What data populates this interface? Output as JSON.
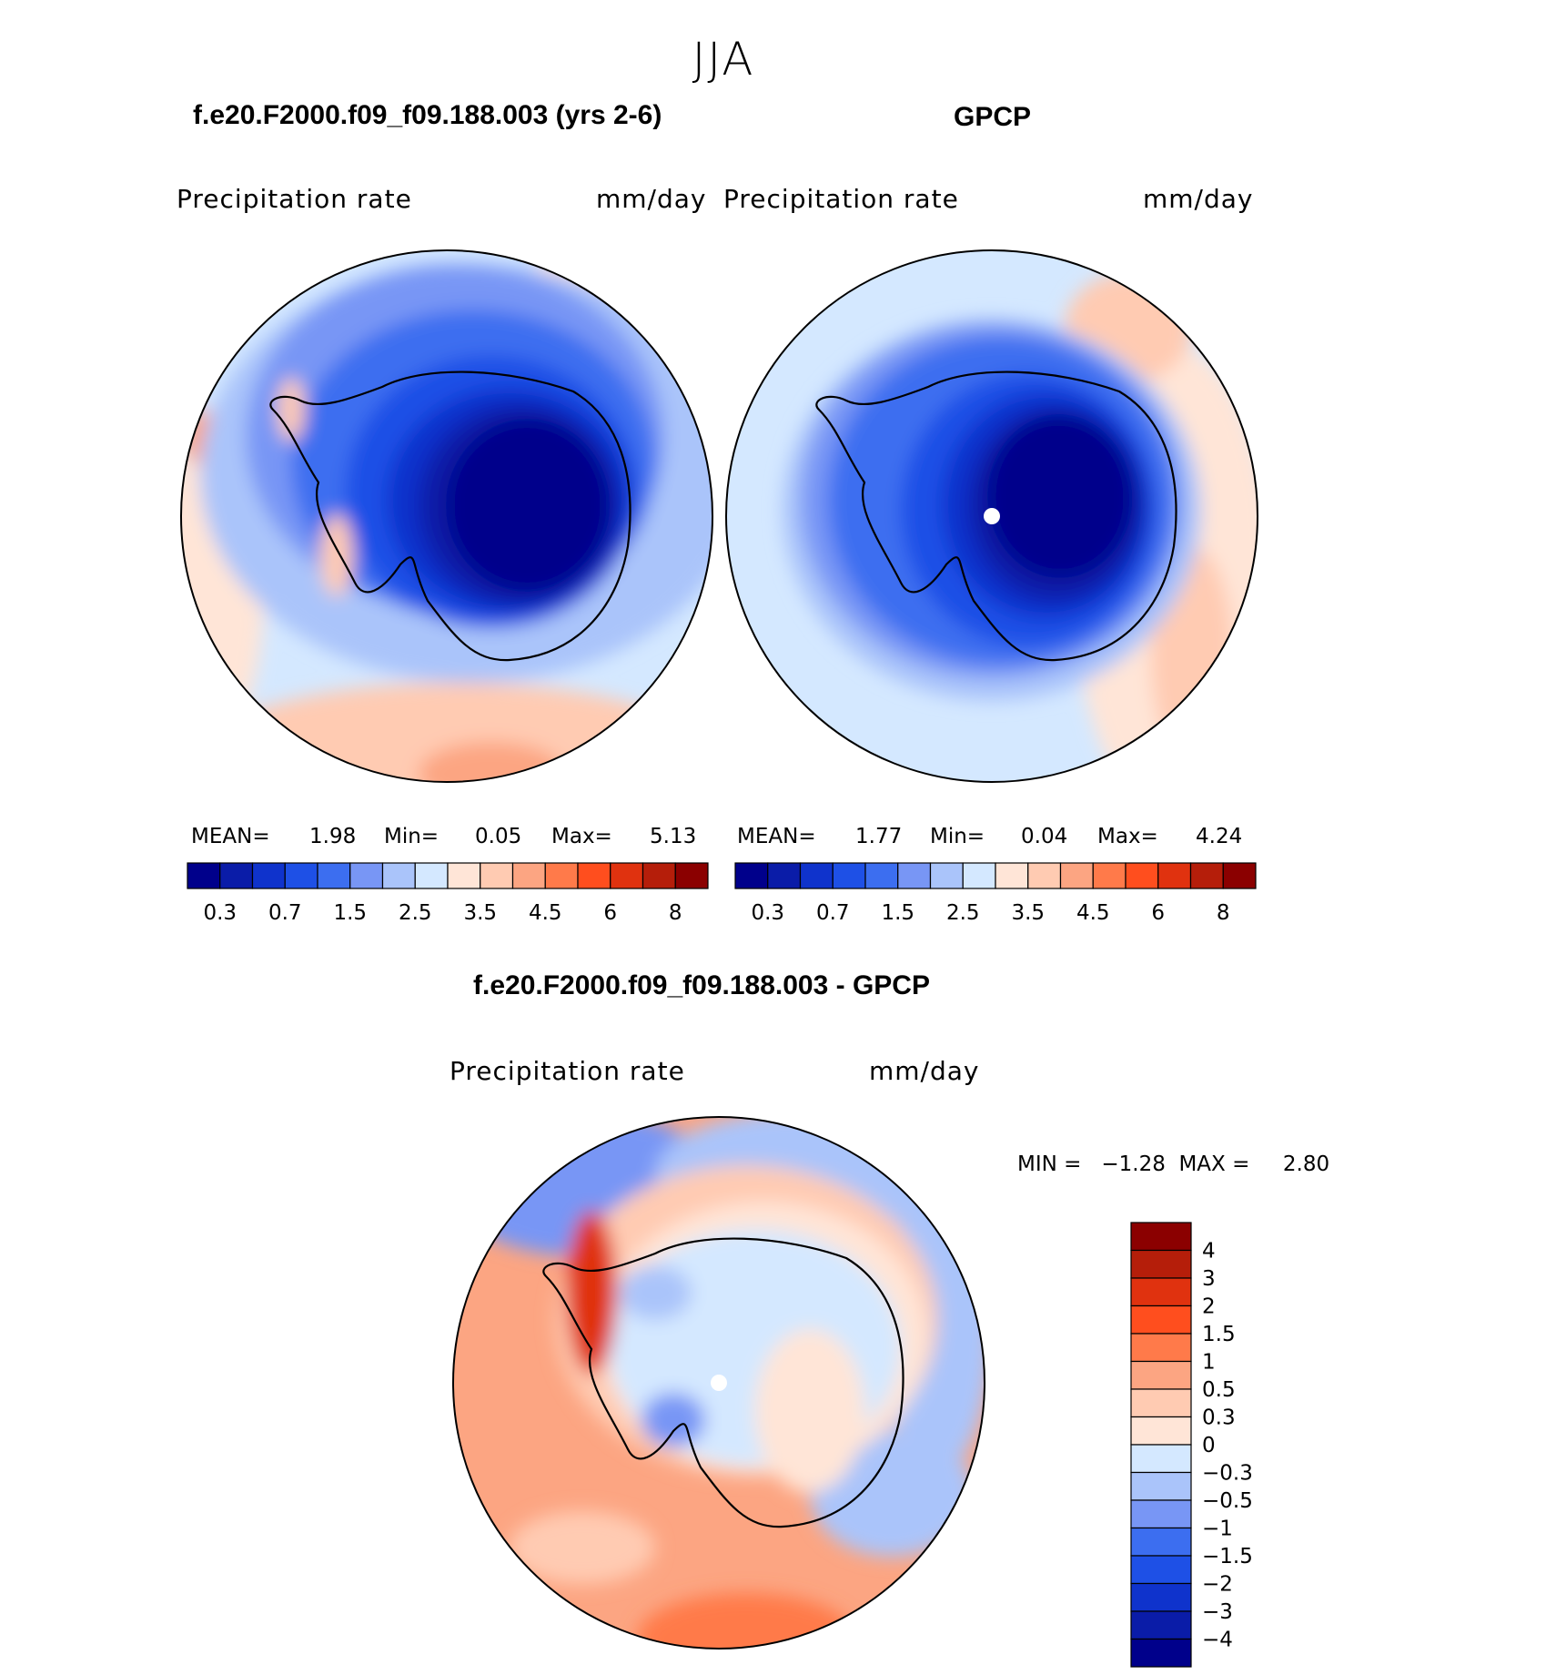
{
  "figure": {
    "season": "JJA",
    "case_title": "f.e20.F2000.f09_f09.188.003 (yrs 2-6)",
    "obs_title": "GPCP",
    "diff_title": "f.e20.F2000.f09_f09.188.003 - GPCP"
  },
  "panels": [
    {
      "id": "model",
      "variable": "Precipitation  rate",
      "units": "mm/day",
      "mean_label": "MEAN=",
      "mean": "1.98",
      "min_label": "Min=",
      "min": "0.05",
      "max_label": "Max=",
      "max": "5.13"
    },
    {
      "id": "obs",
      "variable": "Precipitation  rate",
      "units": "mm/day",
      "mean_label": "MEAN=",
      "mean": "1.77",
      "min_label": "Min=",
      "min": "0.04",
      "max_label": "Max=",
      "max": "4.24"
    },
    {
      "id": "diff",
      "variable": "Precipitation  rate",
      "units": "mm/day",
      "minmax_text": "MIN =   −1.28  MAX =     2.80"
    }
  ],
  "abs_colorbar": {
    "colors": [
      "#00008b",
      "#0a1ca8",
      "#0f33cc",
      "#1e50e6",
      "#3c6ef0",
      "#7896f5",
      "#aac4fa",
      "#d4e8ff",
      "#ffe5d7",
      "#ffcbb2",
      "#fca582",
      "#ff7a4a",
      "#ff4e1e",
      "#e0320f",
      "#b51e0a",
      "#8b0000"
    ],
    "labels": [
      "0.3",
      "0.7",
      "1.5",
      "2.5",
      "3.5",
      "4.5",
      "6",
      "8"
    ]
  },
  "diff_colorbar": {
    "colors": [
      "#00008b",
      "#0a1ca8",
      "#0f33cc",
      "#1e50e6",
      "#3c6ef0",
      "#7896f5",
      "#aac4fa",
      "#d4e8ff",
      "#ffe5d7",
      "#ffcbb2",
      "#fca582",
      "#ff7a4a",
      "#ff4e1e",
      "#e0320f",
      "#b51e0a",
      "#8b0000"
    ],
    "labels": [
      "4",
      "3",
      "2",
      "1.5",
      "1",
      "0.5",
      "0.3",
      "0",
      "−0.3",
      "−0.5",
      "−1",
      "−1.5",
      "−2",
      "−3",
      "−4"
    ]
  }
}
